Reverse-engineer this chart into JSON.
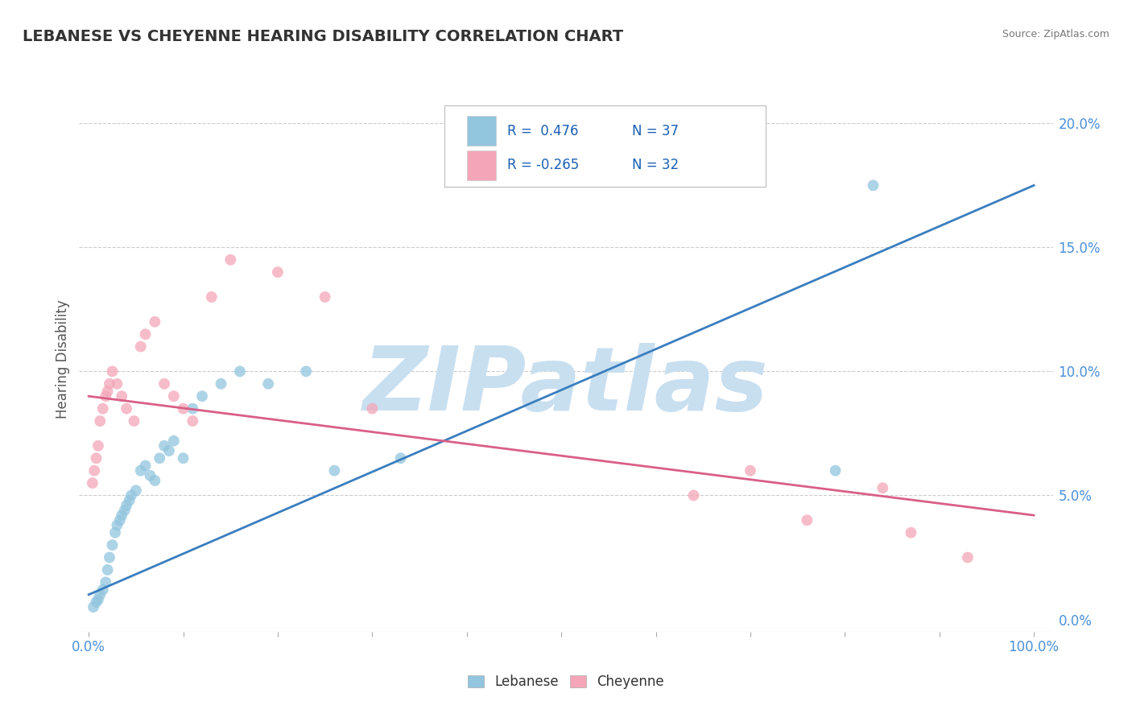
{
  "title": "LEBANESE VS CHEYENNE HEARING DISABILITY CORRELATION CHART",
  "source_text": "Source: ZipAtlas.com",
  "ylabel": "Hearing Disability",
  "xlim": [
    -0.01,
    1.02
  ],
  "ylim": [
    -0.005,
    0.215
  ],
  "xticks": [
    0.0,
    0.1,
    0.2,
    0.3,
    0.4,
    0.5,
    0.6,
    0.7,
    0.8,
    0.9,
    1.0
  ],
  "xtick_labels": [
    "0.0%",
    "",
    "",
    "",
    "",
    "",
    "",
    "",
    "",
    "",
    "100.0%"
  ],
  "yticks_right": [
    0.0,
    0.05,
    0.1,
    0.15,
    0.2
  ],
  "ytick_labels_right": [
    "0.0%",
    "5.0%",
    "10.0%",
    "15.0%",
    "20.0%"
  ],
  "legend_r1": "R =  0.476",
  "legend_n1": "N = 37",
  "legend_r2": "R = -0.265",
  "legend_n2": "N = 32",
  "blue_color": "#92c5de",
  "pink_color": "#f4a6b8",
  "blue_line_color": "#3a7ebf",
  "pink_line_color": "#d95f86",
  "watermark": "ZIPatlas",
  "watermark_color": "#c8dff0",
  "blue_scatter_x": [
    0.005,
    0.008,
    0.01,
    0.012,
    0.015,
    0.018,
    0.02,
    0.022,
    0.025,
    0.028,
    0.03,
    0.033,
    0.035,
    0.038,
    0.04,
    0.043,
    0.045,
    0.05,
    0.055,
    0.06,
    0.065,
    0.07,
    0.075,
    0.08,
    0.085,
    0.09,
    0.1,
    0.11,
    0.12,
    0.14,
    0.16,
    0.19,
    0.23,
    0.26,
    0.33,
    0.79,
    0.83
  ],
  "blue_scatter_y": [
    0.005,
    0.007,
    0.008,
    0.01,
    0.012,
    0.015,
    0.02,
    0.025,
    0.03,
    0.035,
    0.038,
    0.04,
    0.042,
    0.044,
    0.046,
    0.048,
    0.05,
    0.052,
    0.06,
    0.062,
    0.058,
    0.056,
    0.065,
    0.07,
    0.068,
    0.072,
    0.065,
    0.085,
    0.09,
    0.095,
    0.1,
    0.095,
    0.1,
    0.06,
    0.065,
    0.06,
    0.175
  ],
  "pink_scatter_x": [
    0.004,
    0.006,
    0.008,
    0.01,
    0.012,
    0.015,
    0.018,
    0.02,
    0.022,
    0.025,
    0.03,
    0.035,
    0.04,
    0.048,
    0.055,
    0.06,
    0.07,
    0.08,
    0.09,
    0.1,
    0.11,
    0.13,
    0.15,
    0.2,
    0.25,
    0.3,
    0.64,
    0.7,
    0.76,
    0.84,
    0.87,
    0.93
  ],
  "pink_scatter_y": [
    0.055,
    0.06,
    0.065,
    0.07,
    0.08,
    0.085,
    0.09,
    0.092,
    0.095,
    0.1,
    0.095,
    0.09,
    0.085,
    0.08,
    0.11,
    0.115,
    0.12,
    0.095,
    0.09,
    0.085,
    0.08,
    0.13,
    0.145,
    0.14,
    0.13,
    0.085,
    0.05,
    0.06,
    0.04,
    0.053,
    0.035,
    0.025
  ],
  "blue_trend_x": [
    0.0,
    1.0
  ],
  "blue_trend_y": [
    0.01,
    0.175
  ],
  "pink_trend_x": [
    0.0,
    1.0
  ],
  "pink_trend_y": [
    0.09,
    0.042
  ],
  "background_color": "#ffffff",
  "grid_color": "#cccccc",
  "title_color": "#333333",
  "axis_label_color": "#555555",
  "legend_text_color": "#1a5fb4",
  "tick_color": "#4a90d9"
}
